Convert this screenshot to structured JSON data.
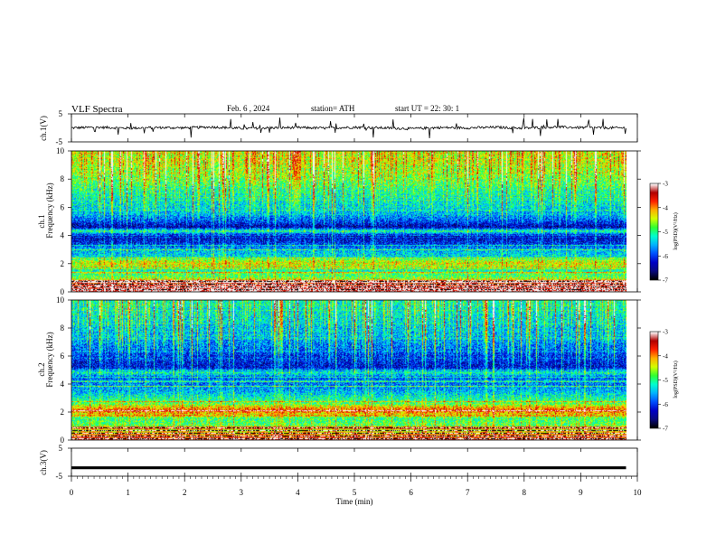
{
  "header": {
    "title": "VLF  Spectra",
    "date": "Feb. 6  , 2024",
    "station": "station= ATH",
    "start_ut": "start  UT  =    22: 30: 1"
  },
  "colors": {
    "colormap": [
      "#000000",
      "#0a0a80",
      "#0000c8",
      "#0050ff",
      "#00b4ff",
      "#00ffd0",
      "#30ff30",
      "#d4ff00",
      "#ffb000",
      "#ff2000",
      "#b00000",
      "#ffffff"
    ],
    "trace": "#000000",
    "axis": "#000000"
  },
  "chart_data": [
    {
      "type": "line",
      "name": "ch1-waveform",
      "ylabel": "ch.1(V)",
      "ylim": [
        -5,
        5
      ],
      "yticks": [
        "5",
        "-5"
      ],
      "x": [
        0,
        0.5,
        1,
        1.5,
        2,
        2.5,
        3,
        3.5,
        4,
        4.5,
        5,
        5.5,
        6,
        6.5,
        7,
        7.5,
        8,
        8.5,
        9,
        9.5,
        9.8
      ],
      "y": [
        0,
        0.2,
        -0.1,
        0.1,
        0,
        0.3,
        -0.2,
        0,
        0.1,
        -0.1,
        0.2,
        0,
        -0.3,
        0.1,
        0,
        0.2,
        -0.1,
        0.3,
        0.1,
        0,
        0
      ],
      "xlim": [
        0,
        10
      ]
    },
    {
      "type": "heatmap",
      "name": "ch1-spectrogram",
      "ylabel": "Frequency  (kHz)",
      "channel_label": "ch.1",
      "ylim": [
        0,
        10
      ],
      "yticks": [
        "10",
        "8",
        "6",
        "4",
        "2",
        "0"
      ],
      "xlim": [
        0,
        9.8
      ],
      "colorbar": {
        "label": "log(PSD)(V²/Hz)",
        "range": [
          -7,
          -3
        ],
        "ticks": [
          "-3",
          "-4",
          "-5",
          "-6",
          "-7"
        ]
      },
      "profile_khz": [
        0,
        0.5,
        1,
        1.5,
        1.8,
        2,
        2.2,
        2.5,
        3,
        3.5,
        4,
        4.3,
        4.6,
        5,
        5.5,
        6,
        7,
        8,
        9,
        10
      ],
      "profile_level": [
        -3.2,
        -3.5,
        -4.8,
        -5.2,
        -4.6,
        -4.4,
        -4.6,
        -5.4,
        -5.6,
        -6.2,
        -6.4,
        -5.0,
        -6.5,
        -6.0,
        -5.6,
        -5.4,
        -5.2,
        -4.8,
        -4.6,
        -4.5
      ]
    },
    {
      "type": "heatmap",
      "name": "ch2-spectrogram",
      "ylabel": "Frequency  (kHz)",
      "channel_label": "ch.2",
      "ylim": [
        0,
        10
      ],
      "yticks": [
        "10",
        "8",
        "6",
        "4",
        "2",
        "0"
      ],
      "xlim": [
        0,
        9.8
      ],
      "colorbar": {
        "label": "log(PSD)(V²/Hz)",
        "range": [
          -7,
          -3
        ],
        "ticks": [
          "-3",
          "-4",
          "-5",
          "-6",
          "-7"
        ]
      },
      "profile_khz": [
        0,
        0.5,
        1,
        1.5,
        2,
        2.1,
        2.3,
        2.6,
        3,
        3.5,
        4,
        4.5,
        4.8,
        5.2,
        6,
        7,
        8,
        9,
        10
      ],
      "profile_level": [
        -3.5,
        -4.2,
        -4.8,
        -5.0,
        -4.0,
        -3.8,
        -4.2,
        -4.9,
        -5.2,
        -5.6,
        -5.8,
        -5.9,
        -5.2,
        -6.3,
        -6.1,
        -5.7,
        -5.5,
        -5.3,
        -5.2
      ]
    },
    {
      "type": "line",
      "name": "ch3-waveform",
      "ylabel": "ch.3(V)",
      "ylim": [
        -5,
        5
      ],
      "yticks": [
        "5",
        "-5"
      ],
      "x": [
        0,
        9.8
      ],
      "y": [
        -2,
        -2
      ],
      "xlim": [
        0,
        10
      ]
    }
  ],
  "xaxis": {
    "label": "Time  (min)",
    "ticks": [
      "0",
      "1",
      "2",
      "3",
      "4",
      "5",
      "6",
      "7",
      "8",
      "9",
      "10"
    ]
  }
}
